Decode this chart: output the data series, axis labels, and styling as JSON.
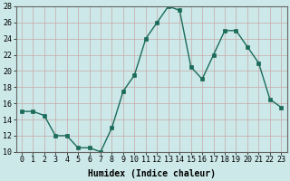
{
  "x": [
    0,
    1,
    2,
    3,
    4,
    5,
    6,
    7,
    8,
    9,
    10,
    11,
    12,
    13,
    14,
    15,
    16,
    17,
    18,
    19,
    20,
    21,
    22,
    23
  ],
  "y": [
    15,
    15,
    14.5,
    12,
    12,
    10.5,
    10.5,
    10,
    13,
    17.5,
    19.5,
    24,
    26,
    28,
    27.5,
    20.5,
    19,
    22,
    25,
    25,
    23,
    21,
    16.5,
    15.5
  ],
  "line_color": "#1a6b5a",
  "marker": "s",
  "marker_size": 2.5,
  "bg_color": "#cce8e8",
  "grid_color_major": "#c8a8a8",
  "grid_color_minor": "#c8a8a8",
  "xlabel": "Humidex (Indice chaleur)",
  "xlim": [
    -0.5,
    23.5
  ],
  "ylim": [
    10,
    28
  ],
  "yticks": [
    10,
    12,
    14,
    16,
    18,
    20,
    22,
    24,
    26,
    28
  ],
  "xticks": [
    0,
    1,
    2,
    3,
    4,
    5,
    6,
    7,
    8,
    9,
    10,
    11,
    12,
    13,
    14,
    15,
    16,
    17,
    18,
    19,
    20,
    21,
    22,
    23
  ],
  "xlabel_fontsize": 7,
  "tick_fontsize": 6,
  "linewidth": 1.0
}
